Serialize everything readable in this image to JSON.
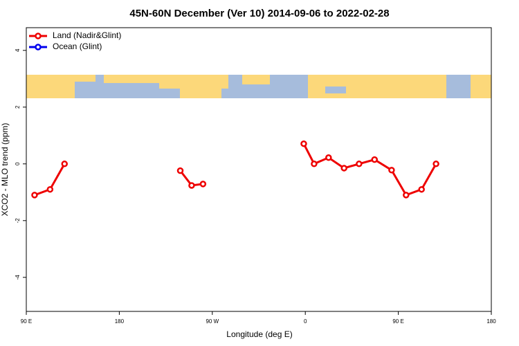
{
  "chart_data": {
    "type": "line",
    "title": "45N-60N December (Ver 10)   2014-09-06 to 2022-02-28",
    "xlabel": "Longitude (deg E)",
    "ylabel": "XCO2 - MLO trend (ppm)",
    "x": [
      98,
      113,
      127,
      null,
      239,
      250,
      261,
      null,
      358.5,
      368.5,
      382.5,
      397.5,
      412,
      427,
      443.5,
      457.5,
      472.5,
      486.5
    ],
    "series": [
      {
        "name": "Land (Nadir&Glint)",
        "color": "#ee0000",
        "values": [
          -1.1,
          -0.9,
          0.0,
          null,
          -0.24,
          -0.76,
          -0.71,
          null,
          0.71,
          0.0,
          0.22,
          -0.15,
          0.0,
          0.15,
          -0.22,
          -1.1,
          -0.9,
          0.0
        ]
      },
      {
        "name": "Ocean (Glint)",
        "color": "#0000ee",
        "values": [
          null,
          null,
          null,
          null,
          null,
          null,
          null,
          null,
          null,
          null,
          null,
          null,
          null,
          null,
          null,
          null,
          null,
          null
        ]
      }
    ],
    "xlim": [
      90,
      540
    ],
    "xticks": [
      {
        "value": 90,
        "label": "90 E"
      },
      180,
      {
        "value": 270,
        "label": "90 W"
      },
      {
        "value": 360,
        "label": "0"
      },
      {
        "value": 450,
        "label": "90 E"
      },
      {
        "value": 540,
        "label": "180"
      }
    ],
    "ylim": [
      -5.2,
      4.8
    ],
    "yticks": [
      -4,
      -2,
      0,
      2,
      4
    ],
    "legend": "top-left"
  }
}
